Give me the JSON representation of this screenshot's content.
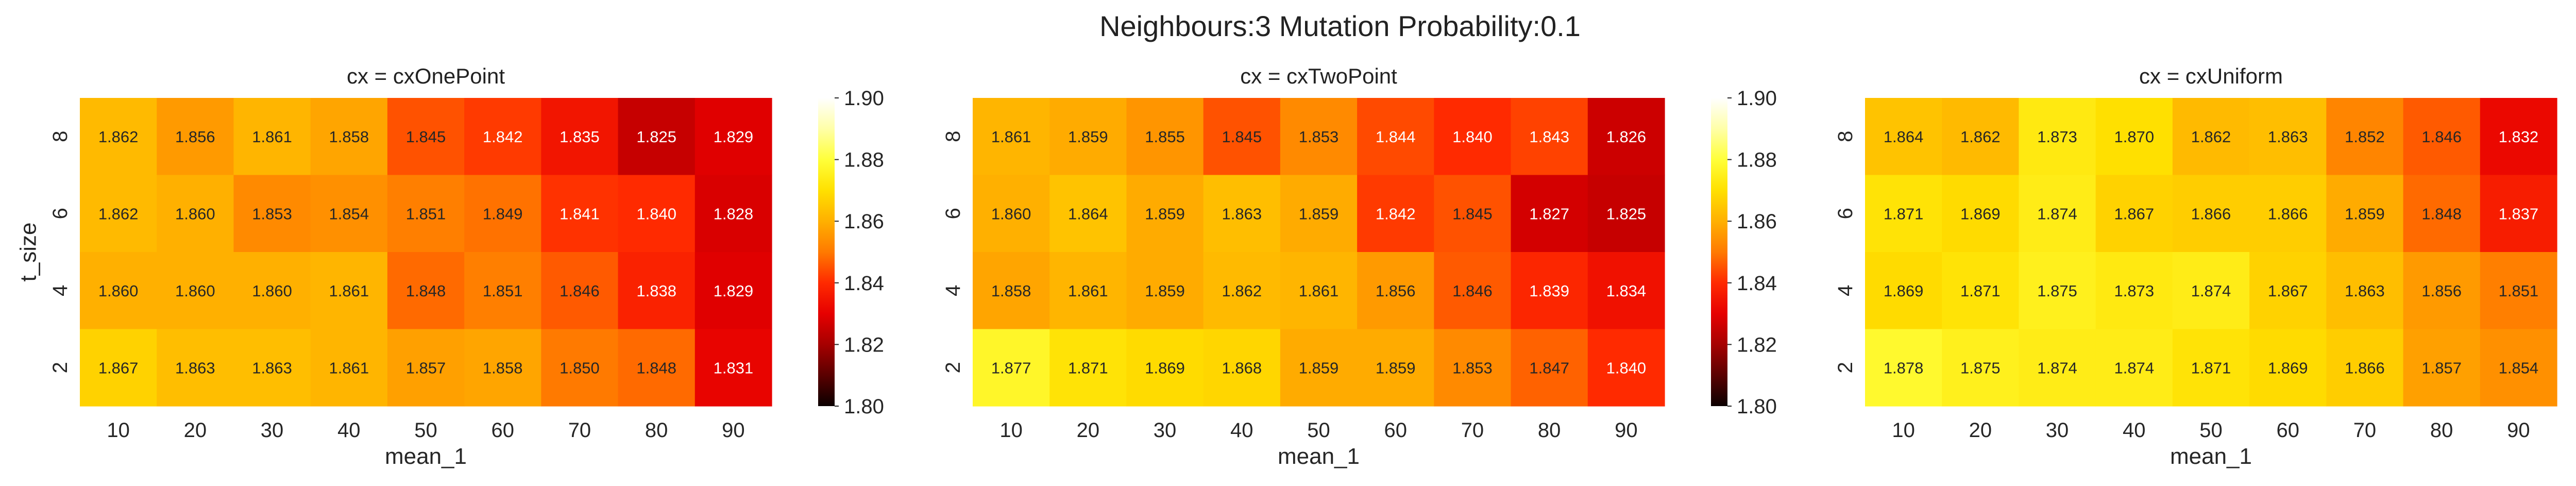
{
  "suptitle": "Neighbours:3 Mutation Probability:0.1",
  "colormap": {
    "name": "hot",
    "vmin": 1.8,
    "vmax": 1.9,
    "ticks": [
      "1.90",
      "1.88",
      "1.86",
      "1.84",
      "1.82",
      "1.80"
    ],
    "stops": [
      "#0b0000",
      "#5a0000",
      "#a60000",
      "#e60000",
      "#ff2a00",
      "#ff7a00",
      "#ffb000",
      "#ffe000",
      "#ffff3a",
      "#ffffa8",
      "#ffffff"
    ]
  },
  "chart_data": [
    {
      "type": "heatmap",
      "title": "cx = cxOnePoint",
      "xlabel": "mean_1",
      "ylabel": "t_size",
      "x": [
        "10",
        "20",
        "30",
        "40",
        "50",
        "60",
        "70",
        "80",
        "90"
      ],
      "y": [
        "8",
        "6",
        "4",
        "2"
      ],
      "values": [
        [
          1.862,
          1.856,
          1.861,
          1.858,
          1.845,
          1.842,
          1.835,
          1.825,
          1.829
        ],
        [
          1.862,
          1.86,
          1.853,
          1.854,
          1.851,
          1.849,
          1.841,
          1.84,
          1.828
        ],
        [
          1.86,
          1.86,
          1.86,
          1.861,
          1.848,
          1.851,
          1.846,
          1.838,
          1.829
        ],
        [
          1.867,
          1.863,
          1.863,
          1.861,
          1.857,
          1.858,
          1.85,
          1.848,
          1.831
        ]
      ],
      "labels": [
        [
          "1.862",
          "1.856",
          "1.861",
          "1.858",
          "1.845",
          "1.842",
          "1.835",
          "1.825",
          "1.829"
        ],
        [
          "1.862",
          "1.860",
          "1.853",
          "1.854",
          "1.851",
          "1.849",
          "1.841",
          "1.840",
          "1.828"
        ],
        [
          "1.860",
          "1.860",
          "1.860",
          "1.861",
          "1.848",
          "1.851",
          "1.846",
          "1.838",
          "1.829"
        ],
        [
          "1.867",
          "1.863",
          "1.863",
          "1.861",
          "1.857",
          "1.858",
          "1.850",
          "1.848",
          "1.831"
        ]
      ]
    },
    {
      "type": "heatmap",
      "title": "cx = cxTwoPoint",
      "xlabel": "mean_1",
      "ylabel": "",
      "x": [
        "10",
        "20",
        "30",
        "40",
        "50",
        "60",
        "70",
        "80",
        "90"
      ],
      "y": [
        "8",
        "6",
        "4",
        "2"
      ],
      "values": [
        [
          1.861,
          1.859,
          1.855,
          1.845,
          1.853,
          1.844,
          1.84,
          1.843,
          1.826
        ],
        [
          1.86,
          1.864,
          1.859,
          1.863,
          1.859,
          1.842,
          1.845,
          1.827,
          1.825
        ],
        [
          1.858,
          1.861,
          1.859,
          1.862,
          1.861,
          1.856,
          1.846,
          1.839,
          1.834
        ],
        [
          1.877,
          1.871,
          1.869,
          1.868,
          1.859,
          1.859,
          1.853,
          1.847,
          1.84
        ]
      ],
      "labels": [
        [
          "1.861",
          "1.859",
          "1.855",
          "1.845",
          "1.853",
          "1.844",
          "1.840",
          "1.843",
          "1.826"
        ],
        [
          "1.860",
          "1.864",
          "1.859",
          "1.863",
          "1.859",
          "1.842",
          "1.845",
          "1.827",
          "1.825"
        ],
        [
          "1.858",
          "1.861",
          "1.859",
          "1.862",
          "1.861",
          "1.856",
          "1.846",
          "1.839",
          "1.834"
        ],
        [
          "1.877",
          "1.871",
          "1.869",
          "1.868",
          "1.859",
          "1.859",
          "1.853",
          "1.847",
          "1.840"
        ]
      ]
    },
    {
      "type": "heatmap",
      "title": "cx = cxUniform",
      "xlabel": "mean_1",
      "ylabel": "",
      "x": [
        "10",
        "20",
        "30",
        "40",
        "50",
        "60",
        "70",
        "80",
        "90"
      ],
      "y": [
        "8",
        "6",
        "4",
        "2"
      ],
      "values": [
        [
          1.864,
          1.862,
          1.873,
          1.87,
          1.862,
          1.863,
          1.852,
          1.846,
          1.832
        ],
        [
          1.871,
          1.869,
          1.874,
          1.867,
          1.866,
          1.866,
          1.859,
          1.848,
          1.837
        ],
        [
          1.869,
          1.871,
          1.875,
          1.873,
          1.874,
          1.867,
          1.863,
          1.856,
          1.851
        ],
        [
          1.878,
          1.875,
          1.874,
          1.874,
          1.871,
          1.869,
          1.866,
          1.857,
          1.854
        ]
      ],
      "labels": [
        [
          "1.864",
          "1.862",
          "1.873",
          "1.870",
          "1.862",
          "1.863",
          "1.852",
          "1.846",
          "1.832"
        ],
        [
          "1.871",
          "1.869",
          "1.874",
          "1.867",
          "1.866",
          "1.866",
          "1.859",
          "1.848",
          "1.837"
        ],
        [
          "1.869",
          "1.871",
          "1.875",
          "1.873",
          "1.874",
          "1.867",
          "1.863",
          "1.856",
          "1.851"
        ],
        [
          "1.878",
          "1.875",
          "1.874",
          "1.874",
          "1.871",
          "1.869",
          "1.866",
          "1.857",
          "1.854"
        ]
      ]
    }
  ]
}
